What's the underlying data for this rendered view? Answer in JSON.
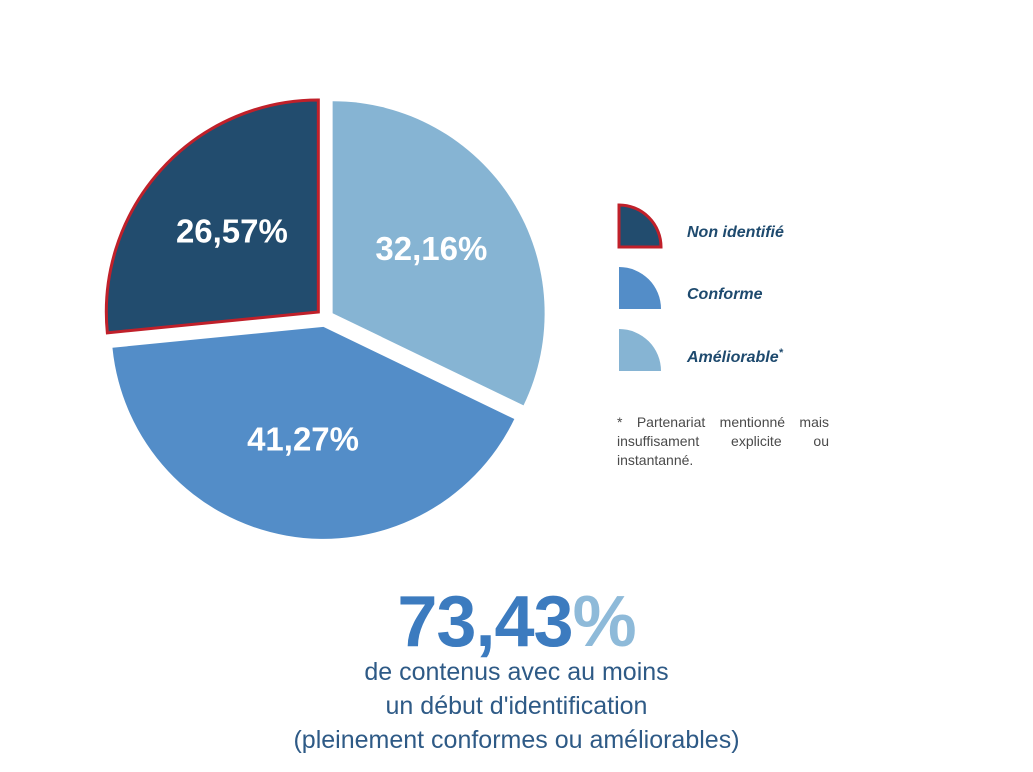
{
  "chart_data": {
    "type": "pie",
    "slices": [
      {
        "label": "Non identifié",
        "value": 26.57,
        "display": "26,57%",
        "color": "#224c6e",
        "border": "#c0202a"
      },
      {
        "label": "Améliorable",
        "value": 32.16,
        "display": "32,16%",
        "color": "#86b4d3",
        "border": ""
      },
      {
        "label": "Conforme",
        "value": 41.27,
        "display": "41,27%",
        "color": "#538dc8",
        "border": ""
      }
    ],
    "legend_placement": "right"
  },
  "legend": {
    "items": [
      {
        "label": "Non identifié",
        "color": "#224c6e",
        "border": "#c0202a",
        "sup": ""
      },
      {
        "label": "Conforme",
        "color": "#538dc8",
        "border": "",
        "sup": ""
      },
      {
        "label": "Améliorable",
        "color": "#86b4d3",
        "border": "",
        "sup": "*"
      }
    ],
    "footnote": "* Partenariat mentionné mais insuffisament explicite ou instantanné."
  },
  "summary": {
    "number": "73,43",
    "percent_sign": "%",
    "lines": [
      "de contenus avec au moins",
      "un début d'identification",
      "(pleinement conformes ou améliorables)"
    ]
  }
}
